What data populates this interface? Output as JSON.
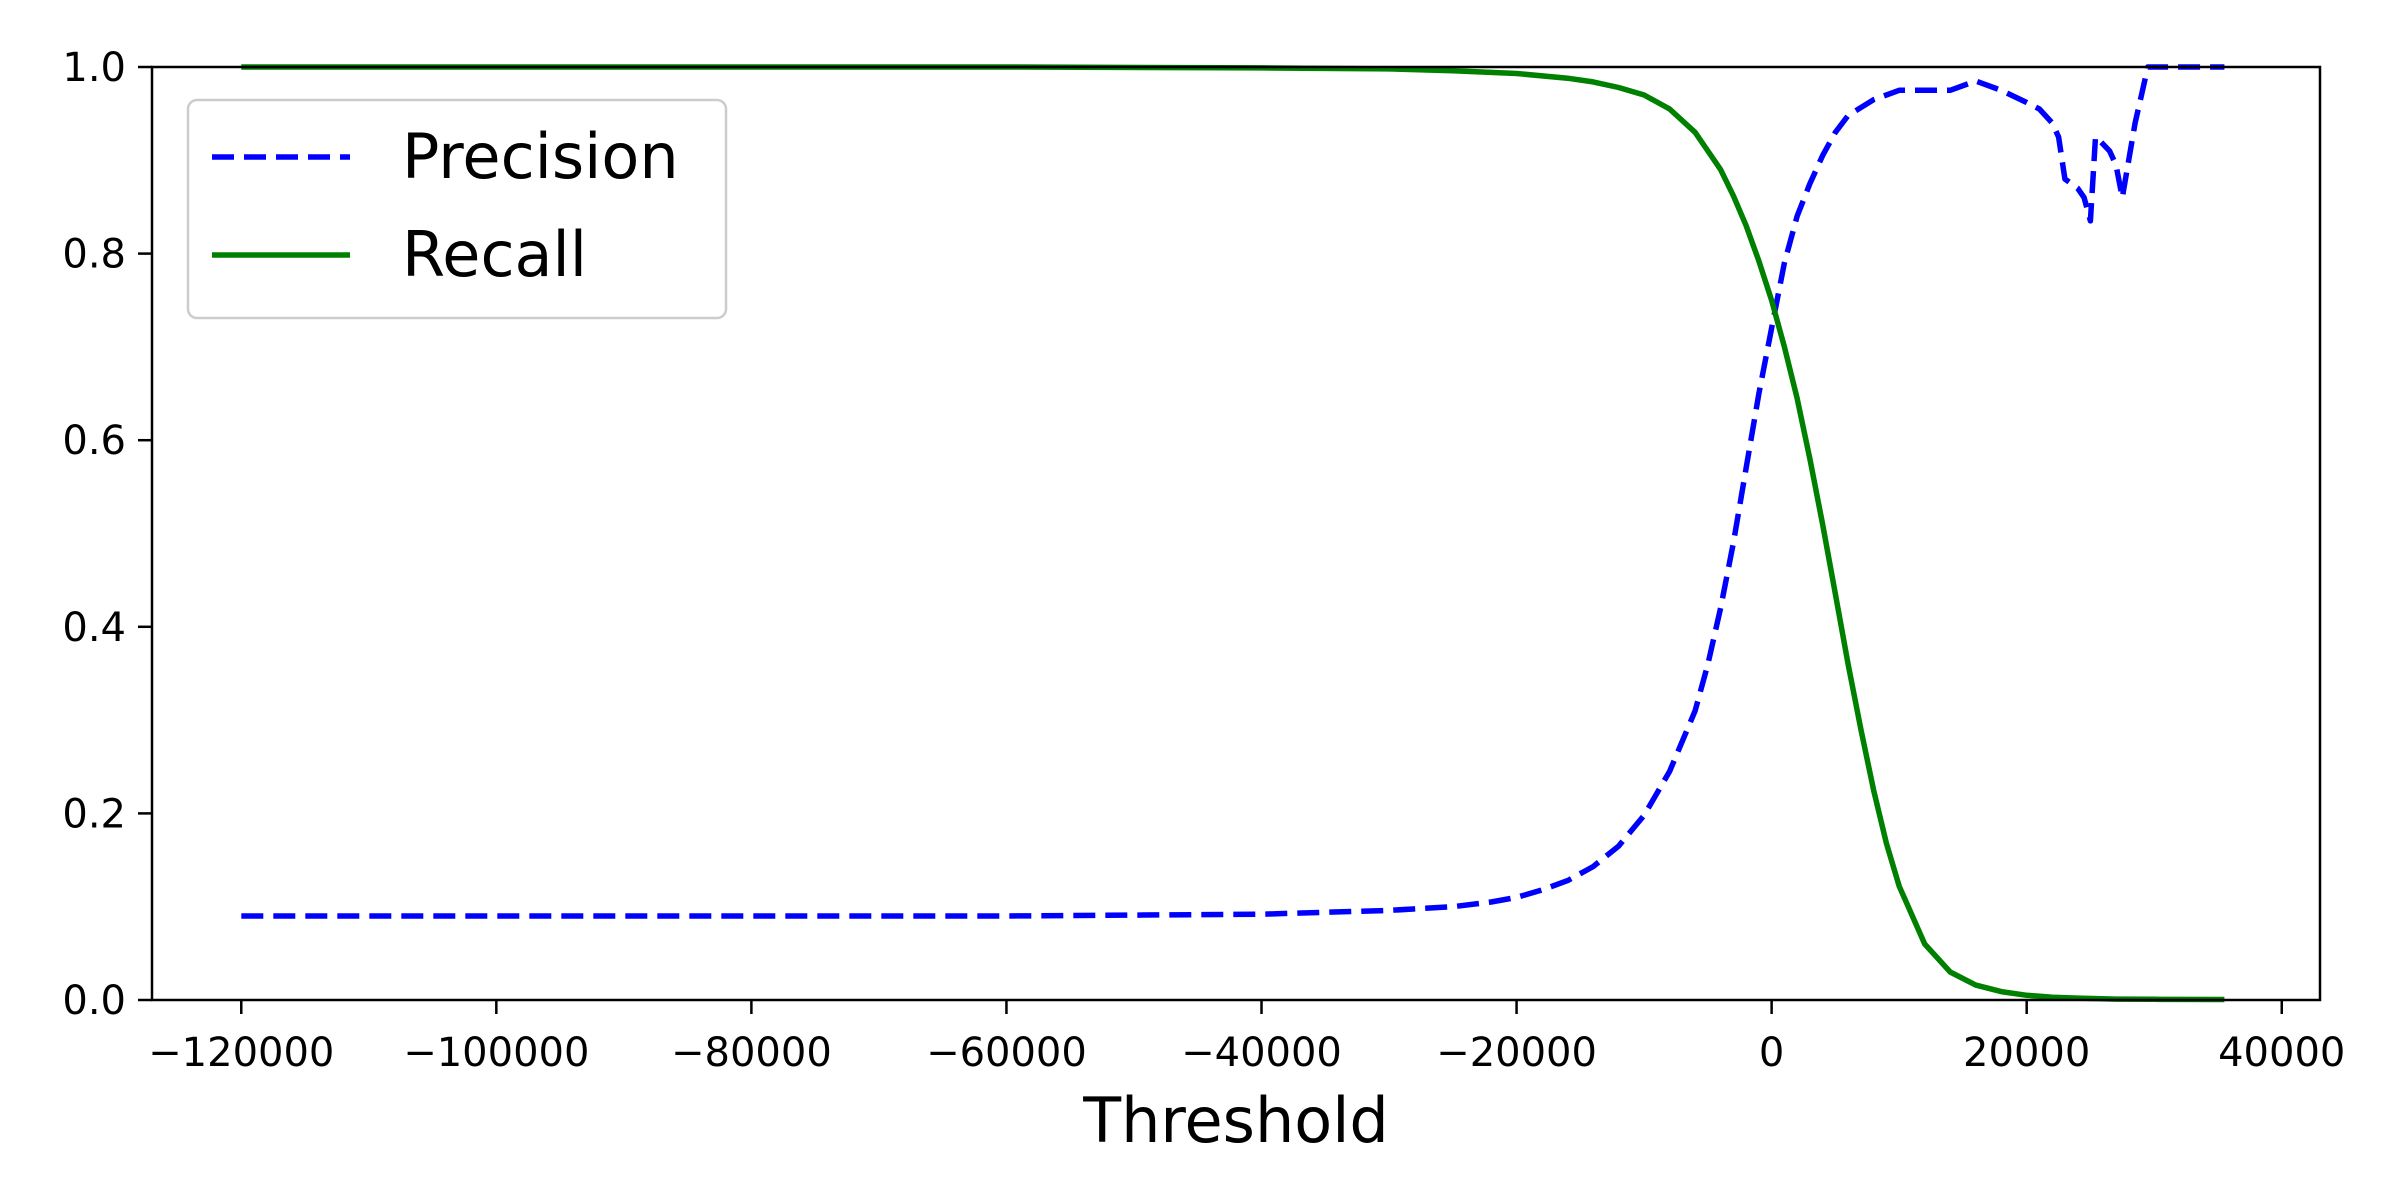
{
  "chart_data": {
    "type": "line",
    "title": "",
    "xlabel": "Threshold",
    "ylabel": "",
    "xlim": [
      -127000,
      43000
    ],
    "ylim": [
      0.0,
      1.0
    ],
    "x_ticks": [
      -120000,
      -100000,
      -80000,
      -60000,
      -40000,
      -20000,
      0,
      20000,
      40000
    ],
    "x_tick_labels": [
      "−120000",
      "−100000",
      "−80000",
      "−60000",
      "−40000",
      "−20000",
      "0",
      "20000",
      "40000"
    ],
    "y_ticks": [
      0.0,
      0.2,
      0.4,
      0.6,
      0.8,
      1.0
    ],
    "y_tick_labels": [
      "0.0",
      "0.2",
      "0.4",
      "0.6",
      "0.8",
      "1.0"
    ],
    "grid": false,
    "legend_position": "top-left",
    "series": [
      {
        "name": "Precision",
        "color": "#0000ff",
        "style": "dashed",
        "x": [
          -120000,
          -100000,
          -80000,
          -60000,
          -50000,
          -40000,
          -35000,
          -30000,
          -25000,
          -22000,
          -20000,
          -18000,
          -16000,
          -14000,
          -12000,
          -10000,
          -8000,
          -6000,
          -5000,
          -4000,
          -3000,
          -2000,
          -1000,
          0,
          1000,
          2000,
          3000,
          4000,
          5000,
          6000,
          8000,
          10000,
          12000,
          14000,
          16000,
          18000,
          20000,
          21000,
          22000,
          22500,
          23000,
          24000,
          24500,
          25000,
          25400,
          25800,
          26500,
          27000,
          27500,
          28000,
          28500,
          29000,
          29500,
          30000,
          33000,
          35500
        ],
        "y": [
          0.09,
          0.09,
          0.09,
          0.09,
          0.091,
          0.092,
          0.094,
          0.096,
          0.1,
          0.105,
          0.11,
          0.118,
          0.128,
          0.143,
          0.165,
          0.198,
          0.245,
          0.31,
          0.36,
          0.42,
          0.49,
          0.57,
          0.65,
          0.72,
          0.79,
          0.84,
          0.875,
          0.905,
          0.93,
          0.948,
          0.965,
          0.975,
          0.975,
          0.975,
          0.985,
          0.975,
          0.962,
          0.955,
          0.94,
          0.925,
          0.88,
          0.87,
          0.86,
          0.835,
          0.925,
          0.92,
          0.91,
          0.895,
          0.86,
          0.9,
          0.94,
          0.97,
          1.0,
          1.0,
          1.0,
          1.0
        ]
      },
      {
        "name": "Recall",
        "color": "#008000",
        "style": "solid",
        "x": [
          -120000,
          -100000,
          -80000,
          -60000,
          -40000,
          -30000,
          -25000,
          -20000,
          -16000,
          -14000,
          -12000,
          -10000,
          -8000,
          -6000,
          -5000,
          -4000,
          -3000,
          -2000,
          -1000,
          0,
          1000,
          2000,
          3000,
          4000,
          5000,
          6000,
          7000,
          8000,
          9000,
          10000,
          12000,
          14000,
          16000,
          18000,
          20000,
          22000,
          24000,
          27000,
          30000,
          35500
        ],
        "y": [
          1.0,
          1.0,
          1.0,
          1.0,
          0.999,
          0.998,
          0.996,
          0.993,
          0.988,
          0.984,
          0.978,
          0.97,
          0.955,
          0.93,
          0.91,
          0.89,
          0.862,
          0.83,
          0.792,
          0.75,
          0.7,
          0.645,
          0.58,
          0.51,
          0.435,
          0.36,
          0.29,
          0.225,
          0.168,
          0.122,
          0.06,
          0.03,
          0.016,
          0.009,
          0.005,
          0.003,
          0.002,
          0.001,
          0.0008,
          0.0005
        ]
      }
    ]
  }
}
